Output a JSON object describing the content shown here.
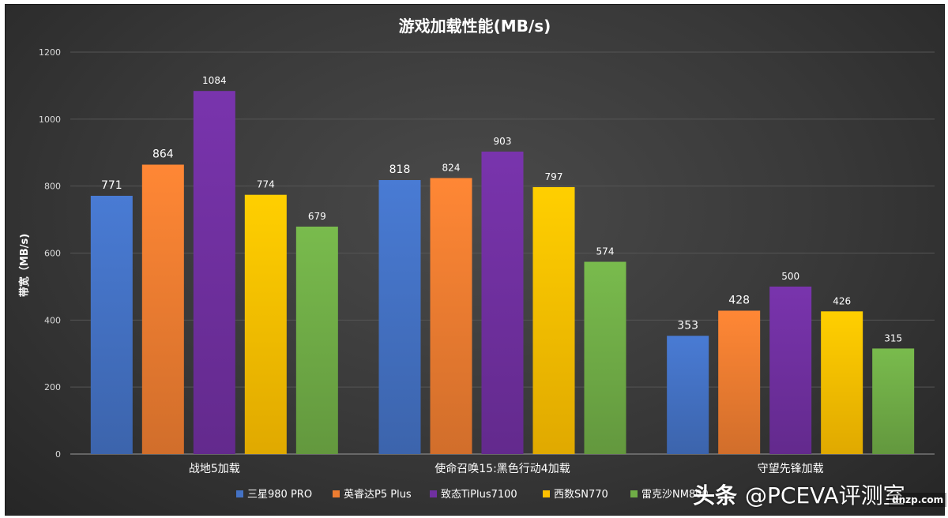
{
  "watermark": {
    "brand": "头条",
    "handle": "@PCEVA评测室",
    "site": "dnzp.com"
  },
  "chart_data": {
    "type": "bar",
    "title": "游戏加载性能(MB/s)",
    "ylabel": "带宽（MB/s)",
    "xlabel": "",
    "ylim": [
      0,
      1200
    ],
    "yticks": [
      0,
      200,
      400,
      600,
      800,
      1000,
      1200
    ],
    "grid": true,
    "legend_position": "bottom",
    "categories": [
      "战地5加载",
      "使命召唤15:黑色行动4加载",
      "守望先锋加载"
    ],
    "series": [
      {
        "name": "三星980 PRO",
        "values": [
          771,
          818,
          353
        ],
        "color": "#4472c4"
      },
      {
        "name": "英睿达P5 Plus",
        "values": [
          864,
          824,
          428
        ],
        "color": "#ed7d31"
      },
      {
        "name": "致态TiPlus7100",
        "values": [
          1084,
          903,
          500
        ],
        "color": "#7030a0"
      },
      {
        "name": "西数SN770",
        "values": [
          774,
          797,
          426
        ],
        "color": "#ffc000"
      },
      {
        "name": "雷克沙NM800",
        "values": [
          679,
          574,
          315
        ],
        "color": "#70ad47"
      }
    ]
  }
}
